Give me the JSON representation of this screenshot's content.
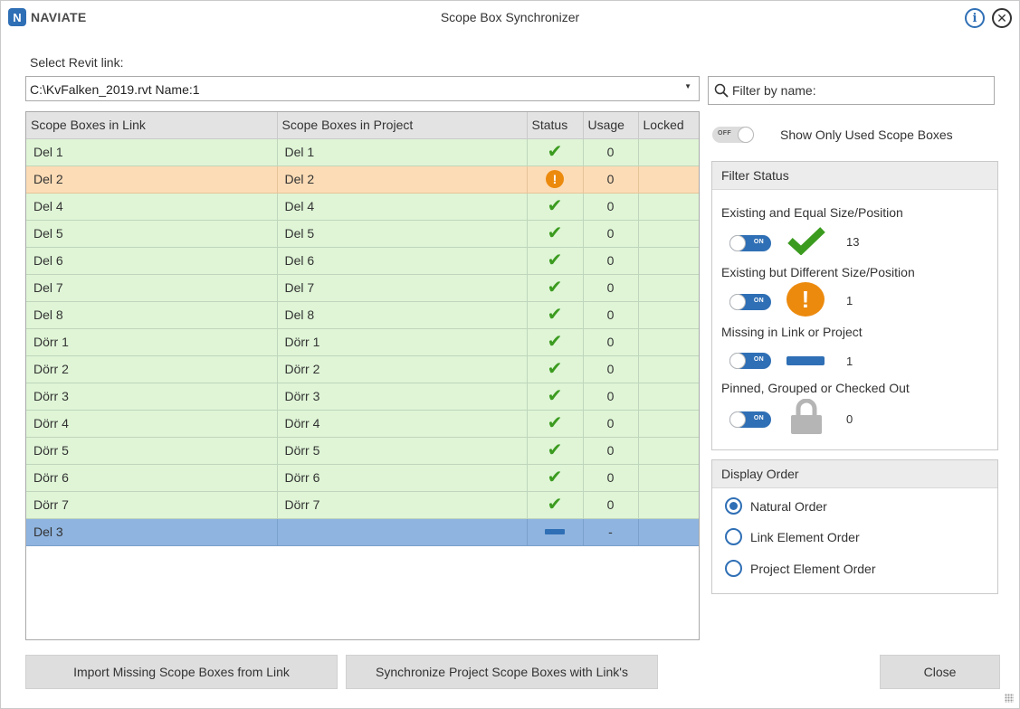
{
  "titlebar": {
    "logo_letter": "N",
    "logo_text": "NAVIATE",
    "title": "Scope Box Synchronizer",
    "info_label": "i",
    "close_label": "✕"
  },
  "link": {
    "label": "Select Revit link:",
    "selected": "C:\\KvFalken_2019.rvt Name:1"
  },
  "filter": {
    "placeholder": "Filter by name:"
  },
  "grid": {
    "columns": [
      "Scope Boxes in Link",
      "Scope Boxes in Project",
      "Status",
      "Usage",
      "Locked"
    ],
    "rows": [
      {
        "link": "Del 1",
        "project": "Del 1",
        "status": "ok",
        "usage": "0",
        "locked": ""
      },
      {
        "link": "Del 2",
        "project": "Del 2",
        "status": "warn",
        "usage": "0",
        "locked": ""
      },
      {
        "link": "Del 4",
        "project": "Del 4",
        "status": "ok",
        "usage": "0",
        "locked": ""
      },
      {
        "link": "Del 5",
        "project": "Del 5",
        "status": "ok",
        "usage": "0",
        "locked": ""
      },
      {
        "link": "Del 6",
        "project": "Del 6",
        "status": "ok",
        "usage": "0",
        "locked": ""
      },
      {
        "link": "Del 7",
        "project": "Del 7",
        "status": "ok",
        "usage": "0",
        "locked": ""
      },
      {
        "link": "Del 8",
        "project": "Del 8",
        "status": "ok",
        "usage": "0",
        "locked": ""
      },
      {
        "link": "Dörr 1",
        "project": "Dörr 1",
        "status": "ok",
        "usage": "0",
        "locked": ""
      },
      {
        "link": "Dörr 2",
        "project": "Dörr 2",
        "status": "ok",
        "usage": "0",
        "locked": ""
      },
      {
        "link": "Dörr 3",
        "project": "Dörr 3",
        "status": "ok",
        "usage": "0",
        "locked": ""
      },
      {
        "link": "Dörr 4",
        "project": "Dörr 4",
        "status": "ok",
        "usage": "0",
        "locked": ""
      },
      {
        "link": "Dörr 5",
        "project": "Dörr 5",
        "status": "ok",
        "usage": "0",
        "locked": ""
      },
      {
        "link": "Dörr 6",
        "project": "Dörr 6",
        "status": "ok",
        "usage": "0",
        "locked": ""
      },
      {
        "link": "Dörr 7",
        "project": "Dörr 7",
        "status": "ok",
        "usage": "0",
        "locked": ""
      },
      {
        "link": "Del 3",
        "project": "",
        "status": "missing",
        "usage": "-",
        "locked": ""
      }
    ]
  },
  "show_used": {
    "toggle_text": "OFF",
    "state": "off",
    "label": "Show Only Used Scope Boxes"
  },
  "filter_status": {
    "title": "Filter Status",
    "items": [
      {
        "label": "Existing and Equal Size/Position",
        "toggle_text": "ON",
        "count": "13",
        "icon": "check-icon"
      },
      {
        "label": "Existing but Different Size/Position",
        "toggle_text": "ON",
        "count": "1",
        "icon": "warning-icon"
      },
      {
        "label": "Missing in Link or Project",
        "toggle_text": "ON",
        "count": "1",
        "icon": "dash-icon"
      },
      {
        "label": "Pinned, Grouped or Checked Out",
        "toggle_text": "ON",
        "count": "0",
        "icon": "lock-icon"
      }
    ]
  },
  "display_order": {
    "title": "Display Order",
    "options": [
      {
        "label": "Natural Order",
        "selected": true
      },
      {
        "label": "Link Element Order",
        "selected": false
      },
      {
        "label": "Project Element Order",
        "selected": false
      }
    ]
  },
  "buttons": {
    "import": "Import Missing Scope Boxes from Link",
    "sync": "Synchronize Project Scope Boxes with Link's",
    "close": "Close"
  },
  "colors": {
    "accent": "#2f6fb5",
    "ok_row": "#dff5d6",
    "warn_row": "#fcdcb6",
    "missing_row": "#8fb4df",
    "check": "#3b9b1f",
    "warning": "#ec8a0e"
  }
}
